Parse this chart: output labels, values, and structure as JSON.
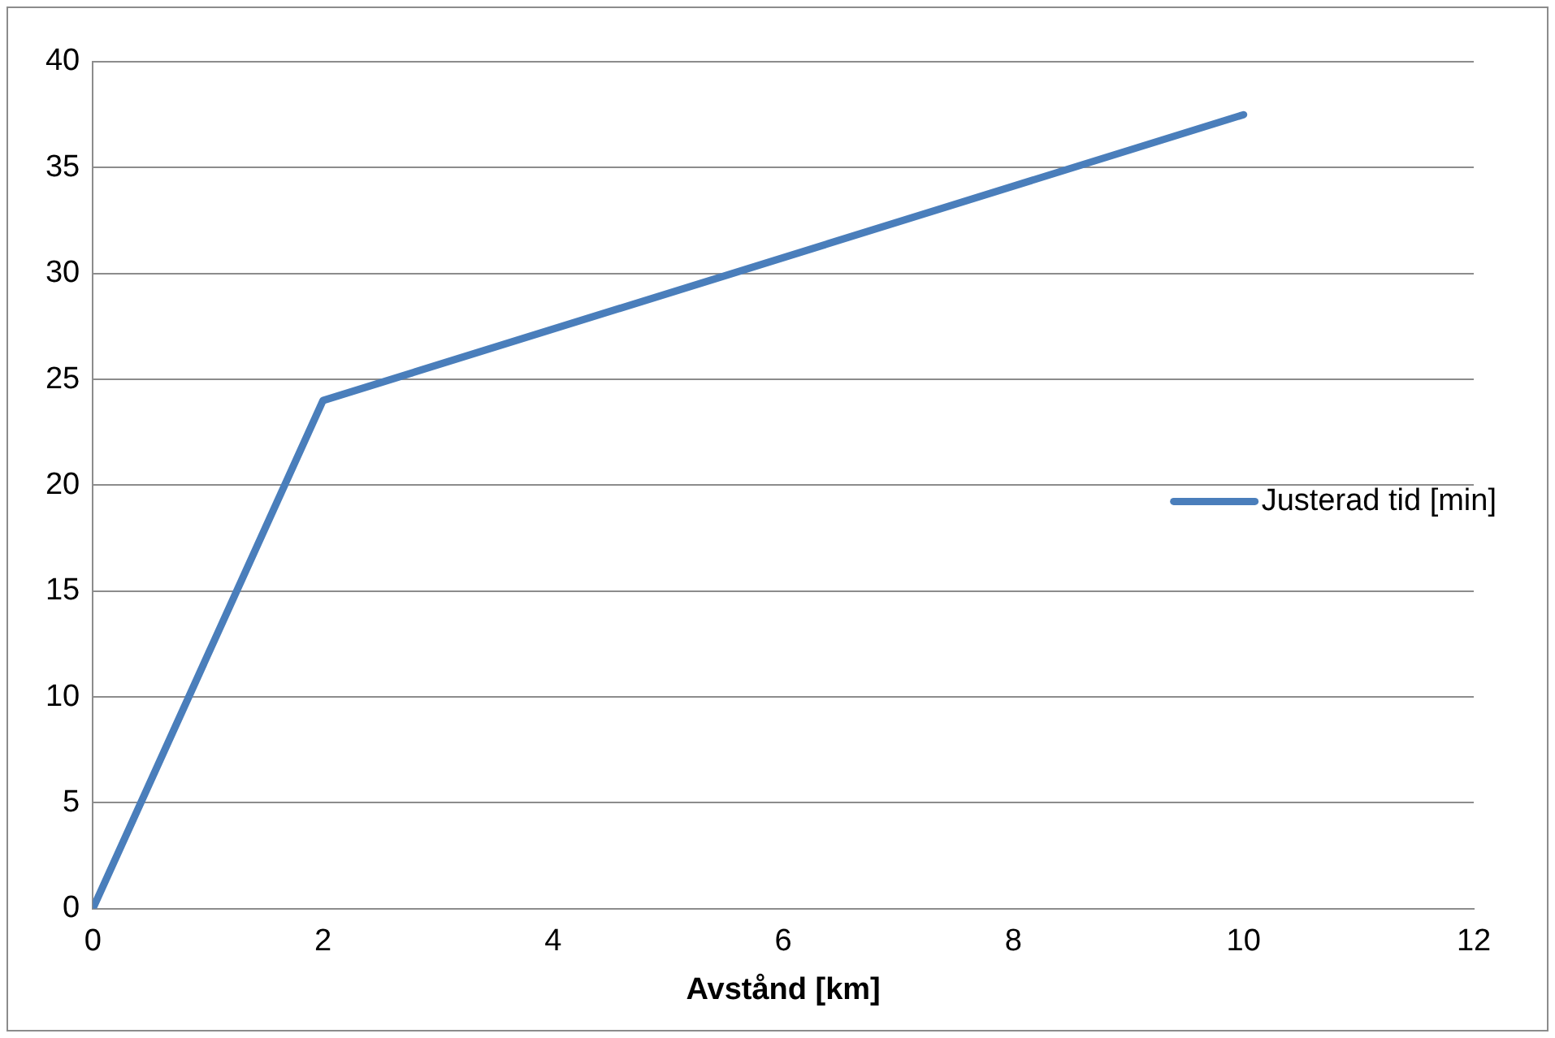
{
  "chart_data": {
    "type": "line",
    "xlabel": "Avstånd [km]",
    "x": [
      0,
      2,
      10
    ],
    "series": [
      {
        "name": "Justerad tid [min]",
        "color": "#4a7ebb",
        "values": [
          0,
          24,
          37.5
        ]
      }
    ],
    "xlim": [
      0,
      12
    ],
    "xticks": [
      0,
      2,
      4,
      6,
      8,
      10,
      12
    ],
    "ylim": [
      0,
      40
    ],
    "yticks": [
      0,
      5,
      10,
      15,
      20,
      25,
      30,
      35,
      40
    ],
    "grid": "y",
    "legend": "right",
    "marker": "none",
    "line_style": "solid"
  }
}
